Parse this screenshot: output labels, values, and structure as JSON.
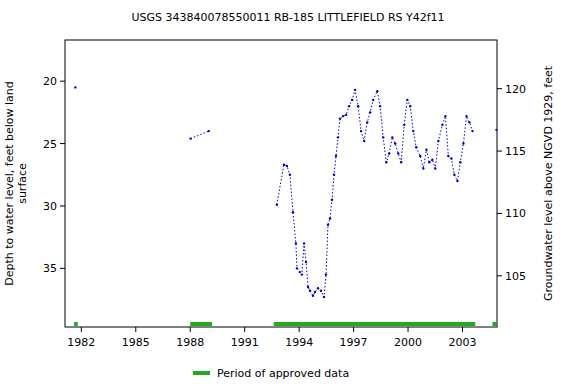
{
  "chart_data": {
    "type": "line",
    "title": "USGS 343840078550011 RB-185 LITTLEFIELD RS Y42f11",
    "y_label": [
      "Depth to water level, feet below land",
      "surface"
    ],
    "y2_label": "Groundwater level above NGVD 1929, feet",
    "xlim": [
      1981.1,
      2004.9
    ],
    "xticks": [
      1982,
      1985,
      1988,
      1991,
      1994,
      1997,
      2000,
      2003
    ],
    "ylim": [
      39.7,
      16.7
    ],
    "yticks": [
      20,
      25,
      30,
      35
    ],
    "y2lim": [
      100.9,
      123.9
    ],
    "y2ticks": [
      105,
      110,
      115,
      120
    ],
    "grid": false,
    "series": [
      {
        "name": "Depth to water level",
        "color": "#0000cc",
        "marker": "dot",
        "line_style": "dotted",
        "x": [
          1981.67,
          null,
          1988.02,
          1989.02,
          null,
          1992.77,
          1993.16,
          1993.33,
          1993.49,
          1993.66,
          1993.82,
          1993.88,
          1994.04,
          1994.15,
          1994.27,
          1994.38,
          1994.49,
          1994.6,
          1994.76,
          1994.87,
          1995.04,
          1995.2,
          1995.37,
          1995.48,
          1995.59,
          1995.7,
          1995.81,
          1995.92,
          1996.03,
          1996.14,
          1996.25,
          1996.42,
          1996.59,
          1996.75,
          1996.92,
          1997.08,
          1997.25,
          1997.41,
          1997.58,
          1997.75,
          1997.91,
          1998.08,
          1998.3,
          1998.46,
          1998.63,
          1998.8,
          1998.96,
          1999.13,
          1999.29,
          1999.46,
          1999.62,
          1999.79,
          1999.96,
          2000.12,
          2000.29,
          2000.45,
          2000.67,
          2000.84,
          2001.01,
          2001.17,
          2001.34,
          2001.5,
          2001.67,
          2001.89,
          2002.06,
          2002.22,
          2002.39,
          2002.55,
          2002.72,
          2002.88,
          2003.05,
          2003.22,
          2003.38,
          2003.55,
          null,
          2004.87
        ],
        "values": [
          20.5,
          null,
          24.6,
          24.0,
          null,
          29.9,
          26.7,
          26.8,
          27.5,
          30.5,
          33.0,
          35.0,
          35.3,
          35.5,
          33.0,
          34.5,
          36.5,
          36.8,
          37.2,
          36.9,
          36.6,
          36.8,
          37.3,
          35.5,
          31.5,
          31.0,
          29.5,
          27.5,
          26.0,
          24.5,
          23.0,
          22.8,
          22.7,
          22.0,
          21.5,
          20.7,
          22.0,
          24.0,
          24.8,
          23.3,
          22.5,
          21.5,
          20.8,
          22.0,
          24.5,
          26.5,
          25.8,
          24.5,
          25.0,
          25.8,
          26.5,
          23.5,
          21.5,
          22.0,
          24.0,
          25.3,
          26.0,
          27.0,
          25.5,
          26.5,
          26.3,
          27.0,
          24.8,
          23.5,
          22.8,
          26.0,
          26.2,
          27.5,
          28.0,
          26.5,
          25.0,
          22.8,
          23.3,
          24.0,
          null,
          23.9
        ]
      }
    ],
    "approved_periods": [
      [
        1981.6,
        1981.8
      ],
      [
        1988.0,
        1989.2
      ],
      [
        1992.6,
        2003.7
      ],
      [
        2004.65,
        2004.9
      ]
    ],
    "approved_color": "#22aa22",
    "legend_label": "Period of approved data"
  }
}
